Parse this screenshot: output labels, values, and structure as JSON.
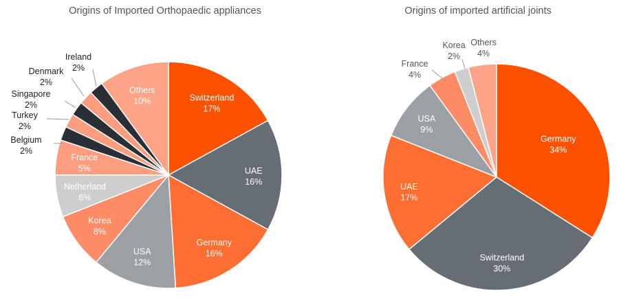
{
  "chart_data": [
    {
      "type": "pie",
      "title": "Origins of Imported Orthopaedic appliances",
      "slices": [
        {
          "label": "Switzerland",
          "value": 17,
          "display": "17%",
          "color": "#fd5102",
          "label_color": "#ffffff"
        },
        {
          "label": "UAE",
          "value": 16,
          "display": "16%",
          "color": "#666d75",
          "label_color": "#ffffff"
        },
        {
          "label": "Germany",
          "value": 16,
          "display": "16%",
          "color": "#fd6e33",
          "label_color": "#ffffff"
        },
        {
          "label": "USA",
          "value": 12,
          "display": "12%",
          "color": "#9c9fa4",
          "label_color": "#ffffff"
        },
        {
          "label": "Korea",
          "value": 8,
          "display": "8%",
          "color": "#fd8b66",
          "label_color": "#ffffff"
        },
        {
          "label": "Netherland",
          "value": 6,
          "display": "6%",
          "color": "#cecece",
          "label_color": "#ffffff"
        },
        {
          "label": "France",
          "value": 5,
          "display": "5%",
          "color": "#fd9d7f",
          "label_color": "#ffffff"
        },
        {
          "label": "Belgium",
          "value": 2,
          "display": "2%",
          "color": "#2a2f36",
          "label_color": "#222222"
        },
        {
          "label": "Turkey",
          "value": 2,
          "display": "2%",
          "color": "#fd9d7f",
          "label_color": "#222222"
        },
        {
          "label": "Singapore",
          "value": 2,
          "display": "2%",
          "color": "#2a2f36",
          "label_color": "#222222"
        },
        {
          "label": "Denmark",
          "value": 2,
          "display": "2%",
          "color": "#fd9d7f",
          "label_color": "#222222"
        },
        {
          "label": "Ireland",
          "value": 2,
          "display": "2%",
          "color": "#2a2f36",
          "label_color": "#222222"
        },
        {
          "label": "Others",
          "value": 10,
          "display": "10%",
          "color": "#fda488",
          "label_color": "#ffffff"
        }
      ]
    },
    {
      "type": "pie",
      "title": "Origins of imported artificial joints",
      "slices": [
        {
          "label": "Germany",
          "value": 34,
          "display": "34%",
          "color": "#fd5102",
          "label_color": "#ffffff"
        },
        {
          "label": "Switzerland",
          "value": 30,
          "display": "30%",
          "color": "#666d75",
          "label_color": "#ffffff"
        },
        {
          "label": "UAE",
          "value": 17,
          "display": "17%",
          "color": "#fd6e33",
          "label_color": "#ffffff"
        },
        {
          "label": "USA",
          "value": 9,
          "display": "9%",
          "color": "#9c9fa4",
          "label_color": "#ffffff"
        },
        {
          "label": "France",
          "value": 4,
          "display": "4%",
          "color": "#fd8b66",
          "label_color": "#555555"
        },
        {
          "label": "Korea",
          "value": 2,
          "display": "2%",
          "color": "#cecece",
          "label_color": "#555555"
        },
        {
          "label": "Others",
          "value": 4,
          "display": "4%",
          "color": "#fda488",
          "label_color": "#555555"
        }
      ]
    }
  ]
}
